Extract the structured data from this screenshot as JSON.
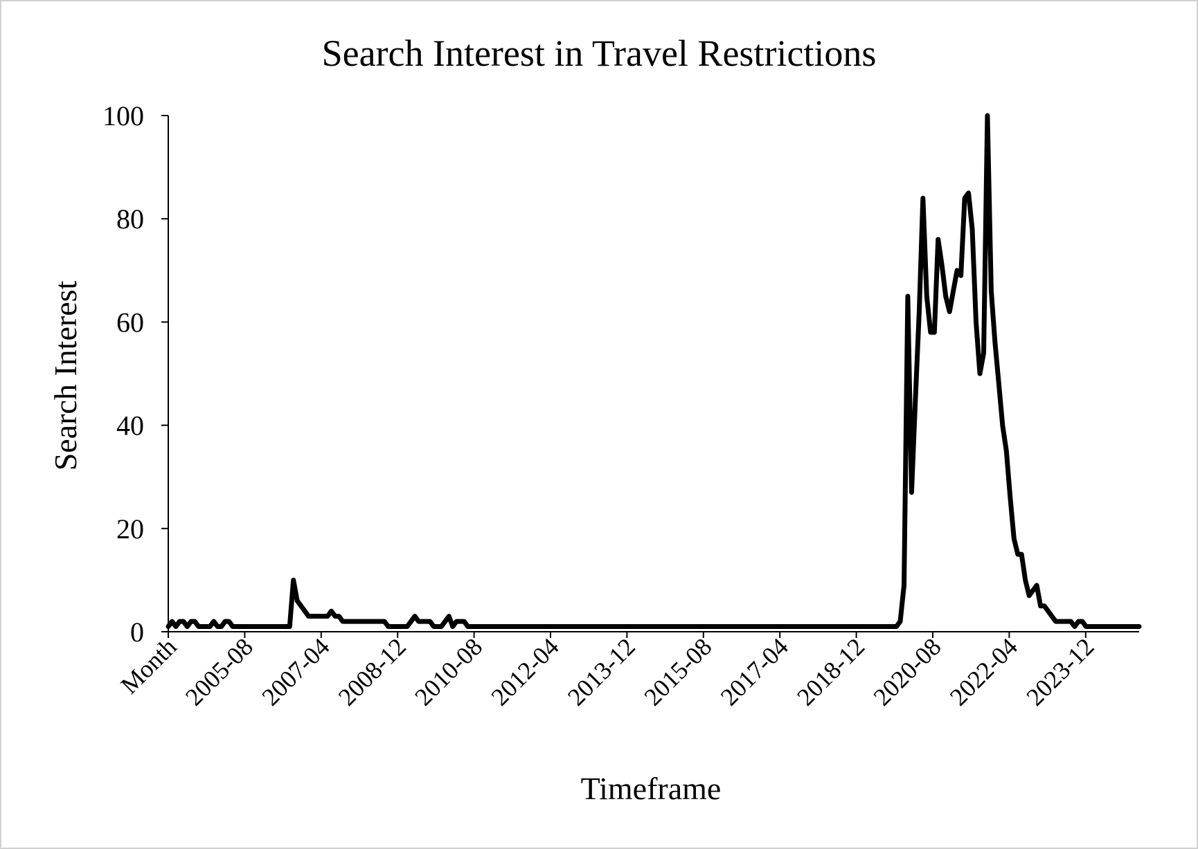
{
  "chart_data": {
    "type": "line",
    "title": "Search Interest in Travel Restrictions",
    "xlabel": "Timeframe",
    "ylabel": "Search Interest",
    "ylim": [
      0,
      100
    ],
    "yticks": [
      0,
      20,
      40,
      60,
      80,
      100
    ],
    "x_tick_labels": [
      "Month",
      "2005-08",
      "2007-04",
      "2008-12",
      "2010-08",
      "2012-04",
      "2013-12",
      "2015-08",
      "2017-04",
      "2018-12",
      "2020-08",
      "2022-04",
      "2023-12"
    ],
    "grid": false,
    "legend": "none",
    "line_color": "#000000",
    "series": [
      {
        "points": [
          [
            "2004-01",
            1
          ],
          [
            "2004-02",
            2
          ],
          [
            "2004-03",
            1
          ],
          [
            "2004-04",
            2
          ],
          [
            "2004-05",
            2
          ],
          [
            "2004-06",
            1
          ],
          [
            "2004-07",
            2
          ],
          [
            "2004-08",
            2
          ],
          [
            "2004-09",
            1
          ],
          [
            "2004-10",
            1
          ],
          [
            "2004-11",
            1
          ],
          [
            "2004-12",
            1
          ],
          [
            "2005-01",
            2
          ],
          [
            "2005-02",
            1
          ],
          [
            "2005-03",
            1
          ],
          [
            "2005-04",
            2
          ],
          [
            "2005-05",
            2
          ],
          [
            "2005-06",
            1
          ],
          [
            "2005-07",
            1
          ],
          [
            "2005-08",
            1
          ],
          [
            "2005-09",
            1
          ],
          [
            "2005-10",
            1
          ],
          [
            "2005-11",
            1
          ],
          [
            "2005-12",
            1
          ],
          [
            "2006-01",
            1
          ],
          [
            "2006-02",
            1
          ],
          [
            "2006-03",
            1
          ],
          [
            "2006-04",
            1
          ],
          [
            "2006-05",
            1
          ],
          [
            "2006-06",
            1
          ],
          [
            "2006-07",
            1
          ],
          [
            "2006-08",
            1
          ],
          [
            "2006-09",
            1
          ],
          [
            "2006-10",
            10
          ],
          [
            "2006-11",
            6
          ],
          [
            "2006-12",
            5
          ],
          [
            "2007-01",
            4
          ],
          [
            "2007-02",
            3
          ],
          [
            "2007-03",
            3
          ],
          [
            "2007-04",
            3
          ],
          [
            "2007-05",
            3
          ],
          [
            "2007-06",
            3
          ],
          [
            "2007-07",
            3
          ],
          [
            "2007-08",
            4
          ],
          [
            "2007-09",
            3
          ],
          [
            "2007-10",
            3
          ],
          [
            "2007-11",
            2
          ],
          [
            "2007-12",
            2
          ],
          [
            "2008-01",
            2
          ],
          [
            "2008-02",
            2
          ],
          [
            "2008-03",
            2
          ],
          [
            "2008-04",
            2
          ],
          [
            "2008-05",
            2
          ],
          [
            "2008-06",
            2
          ],
          [
            "2008-07",
            2
          ],
          [
            "2008-08",
            2
          ],
          [
            "2008-09",
            2
          ],
          [
            "2008-10",
            2
          ],
          [
            "2008-11",
            1
          ],
          [
            "2008-12",
            1
          ],
          [
            "2009-01",
            1
          ],
          [
            "2009-02",
            1
          ],
          [
            "2009-03",
            1
          ],
          [
            "2009-04",
            1
          ],
          [
            "2009-05",
            2
          ],
          [
            "2009-06",
            3
          ],
          [
            "2009-07",
            2
          ],
          [
            "2009-08",
            2
          ],
          [
            "2009-09",
            2
          ],
          [
            "2009-10",
            2
          ],
          [
            "2009-11",
            1
          ],
          [
            "2009-12",
            1
          ],
          [
            "2010-01",
            1
          ],
          [
            "2010-02",
            2
          ],
          [
            "2010-03",
            3
          ],
          [
            "2010-04",
            1
          ],
          [
            "2010-05",
            2
          ],
          [
            "2010-06",
            2
          ],
          [
            "2010-07",
            2
          ],
          [
            "2010-08",
            1
          ],
          [
            "2010-09",
            1
          ],
          [
            "2010-10",
            1
          ],
          [
            "2010-11",
            1
          ],
          [
            "2010-12",
            1
          ],
          [
            "2011-01",
            1
          ],
          [
            "2011-06",
            1
          ],
          [
            "2012-01",
            1
          ],
          [
            "2012-06",
            1
          ],
          [
            "2013-01",
            1
          ],
          [
            "2013-06",
            1
          ],
          [
            "2014-01",
            1
          ],
          [
            "2014-06",
            1
          ],
          [
            "2015-01",
            1
          ],
          [
            "2015-06",
            1
          ],
          [
            "2016-01",
            1
          ],
          [
            "2016-06",
            1
          ],
          [
            "2017-01",
            1
          ],
          [
            "2017-06",
            1
          ],
          [
            "2018-01",
            1
          ],
          [
            "2018-06",
            1
          ],
          [
            "2019-01",
            1
          ],
          [
            "2019-06",
            1
          ],
          [
            "2019-12",
            1
          ],
          [
            "2020-01",
            1
          ],
          [
            "2020-02",
            2
          ],
          [
            "2020-03",
            9
          ],
          [
            "2020-04",
            65
          ],
          [
            "2020-05",
            27
          ],
          [
            "2020-06",
            45
          ],
          [
            "2020-07",
            62
          ],
          [
            "2020-08",
            84
          ],
          [
            "2020-09",
            65
          ],
          [
            "2020-10",
            58
          ],
          [
            "2020-11",
            58
          ],
          [
            "2020-12",
            76
          ],
          [
            "2021-01",
            71
          ],
          [
            "2021-02",
            65
          ],
          [
            "2021-03",
            62
          ],
          [
            "2021-04",
            66
          ],
          [
            "2021-05",
            70
          ],
          [
            "2021-06",
            69
          ],
          [
            "2021-07",
            84
          ],
          [
            "2021-08",
            85
          ],
          [
            "2021-09",
            78
          ],
          [
            "2021-10",
            60
          ],
          [
            "2021-11",
            50
          ],
          [
            "2021-12",
            54
          ],
          [
            "2022-01",
            100
          ],
          [
            "2022-02",
            66
          ],
          [
            "2022-03",
            56
          ],
          [
            "2022-04",
            48
          ],
          [
            "2022-05",
            40
          ],
          [
            "2022-06",
            35
          ],
          [
            "2022-07",
            26
          ],
          [
            "2022-08",
            18
          ],
          [
            "2022-09",
            15
          ],
          [
            "2022-10",
            15
          ],
          [
            "2022-11",
            10
          ],
          [
            "2022-12",
            7
          ],
          [
            "2023-01",
            8
          ],
          [
            "2023-02",
            9
          ],
          [
            "2023-03",
            5
          ],
          [
            "2023-04",
            5
          ],
          [
            "2023-05",
            4
          ],
          [
            "2023-06",
            3
          ],
          [
            "2023-07",
            2
          ],
          [
            "2023-08",
            2
          ],
          [
            "2023-09",
            2
          ],
          [
            "2023-10",
            2
          ],
          [
            "2023-11",
            2
          ],
          [
            "2023-12",
            1
          ],
          [
            "2024-01",
            2
          ],
          [
            "2024-02",
            2
          ],
          [
            "2024-03",
            1
          ],
          [
            "2024-04",
            1
          ],
          [
            "2024-05",
            1
          ],
          [
            "2024-06",
            1
          ],
          [
            "2024-07",
            1
          ],
          [
            "2024-08",
            1
          ],
          [
            "2024-09",
            1
          ],
          [
            "2024-10",
            1
          ],
          [
            "2024-11",
            1
          ],
          [
            "2024-12",
            1
          ],
          [
            "2025-01",
            1
          ],
          [
            "2025-02",
            1
          ],
          [
            "2025-03",
            1
          ],
          [
            "2025-04",
            1
          ],
          [
            "2025-05",
            1
          ]
        ]
      }
    ]
  }
}
